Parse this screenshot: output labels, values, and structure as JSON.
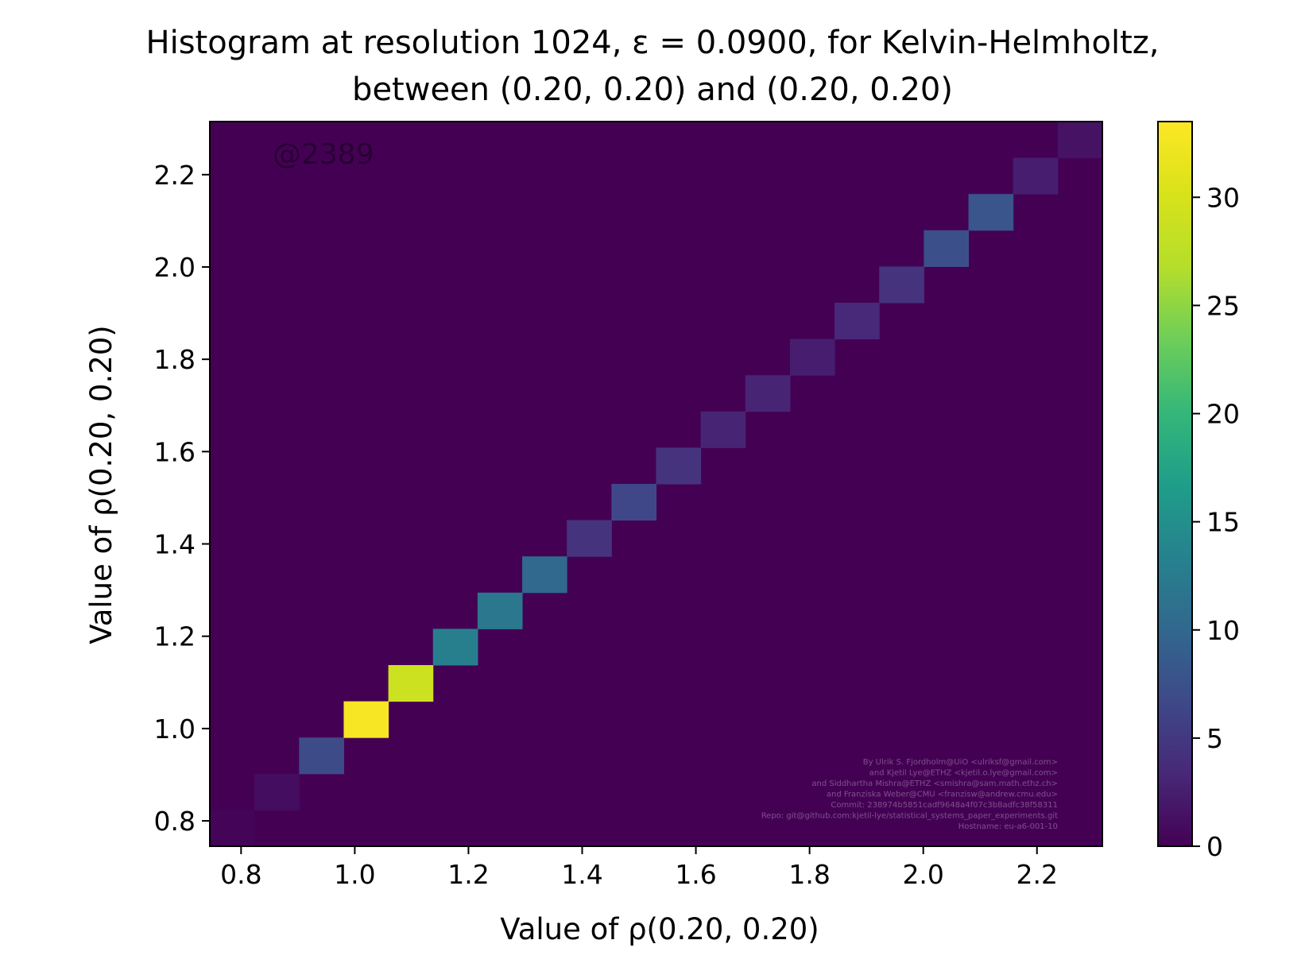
{
  "chart_data": {
    "type": "heatmap",
    "title_lines": [
      "Histogram at resolution 1024, ε = 0.0900, for Kelvin-Helmholtz,",
      "between (0.20, 0.20) and (0.20, 0.20)"
    ],
    "xlabel": "Value of ρ(0.20, 0.20)",
    "ylabel": "Value of ρ(0.20, 0.20)",
    "xlim": [
      0.745,
      2.315
    ],
    "ylim": [
      0.745,
      2.315
    ],
    "x_ticks": [
      0.8,
      1.0,
      1.2,
      1.4,
      1.6,
      1.8,
      2.0,
      2.2
    ],
    "x_tick_labels": [
      "0.8",
      "1.0",
      "1.2",
      "1.4",
      "1.6",
      "1.8",
      "2.0",
      "2.2"
    ],
    "y_ticks": [
      0.8,
      1.0,
      1.2,
      1.4,
      1.6,
      1.8,
      2.0,
      2.2
    ],
    "y_tick_labels": [
      "0.8",
      "1.0",
      "1.2",
      "1.4",
      "1.6",
      "1.8",
      "2.0",
      "2.2"
    ],
    "bin_count": 20,
    "background_value": 0,
    "cells": [
      {
        "x0": 0.745,
        "x1": 0.8235,
        "y0": 0.745,
        "y1": 0.8235,
        "value": 0.3
      },
      {
        "x0": 0.8235,
        "x1": 0.902,
        "y0": 0.8235,
        "y1": 0.902,
        "value": 1
      },
      {
        "x0": 0.902,
        "x1": 0.9805,
        "y0": 0.902,
        "y1": 0.9805,
        "value": 7
      },
      {
        "x0": 0.9805,
        "x1": 1.059,
        "y0": 0.9805,
        "y1": 1.059,
        "value": 33
      },
      {
        "x0": 1.059,
        "x1": 1.1375,
        "y0": 1.059,
        "y1": 1.1375,
        "value": 29
      },
      {
        "x0": 1.1375,
        "x1": 1.216,
        "y0": 1.1375,
        "y1": 1.216,
        "value": 13
      },
      {
        "x0": 1.216,
        "x1": 1.2945,
        "y0": 1.216,
        "y1": 1.2945,
        "value": 12
      },
      {
        "x0": 1.2945,
        "x1": 1.373,
        "y0": 1.2945,
        "y1": 1.373,
        "value": 10
      },
      {
        "x0": 1.373,
        "x1": 1.4515,
        "y0": 1.373,
        "y1": 1.4515,
        "value": 4.5
      },
      {
        "x0": 1.4515,
        "x1": 1.53,
        "y0": 1.4515,
        "y1": 1.53,
        "value": 6.5
      },
      {
        "x0": 1.53,
        "x1": 1.6085,
        "y0": 1.53,
        "y1": 1.6085,
        "value": 4.5
      },
      {
        "x0": 1.6085,
        "x1": 1.687,
        "y0": 1.6085,
        "y1": 1.687,
        "value": 3
      },
      {
        "x0": 1.687,
        "x1": 1.7655,
        "y0": 1.687,
        "y1": 1.7655,
        "value": 3
      },
      {
        "x0": 1.7655,
        "x1": 1.844,
        "y0": 1.7655,
        "y1": 1.844,
        "value": 2.5
      },
      {
        "x0": 1.844,
        "x1": 1.9225,
        "y0": 1.844,
        "y1": 1.9225,
        "value": 3.5
      },
      {
        "x0": 1.9225,
        "x1": 2.001,
        "y0": 1.9225,
        "y1": 2.001,
        "value": 4.5
      },
      {
        "x0": 2.001,
        "x1": 2.0795,
        "y0": 2.001,
        "y1": 2.0795,
        "value": 7.5
      },
      {
        "x0": 2.0795,
        "x1": 2.158,
        "y0": 2.0795,
        "y1": 2.158,
        "value": 8
      },
      {
        "x0": 2.158,
        "x1": 2.2365,
        "y0": 2.158,
        "y1": 2.2365,
        "value": 2.5
      },
      {
        "x0": 2.2365,
        "x1": 2.315,
        "y0": 2.2365,
        "y1": 2.315,
        "value": 1.5
      }
    ],
    "colorbar": {
      "min": 0,
      "max": 33.5,
      "ticks": [
        0,
        5,
        10,
        15,
        20,
        25,
        30
      ],
      "tick_labels": [
        "0",
        "5",
        "10",
        "15",
        "20",
        "25",
        "30"
      ],
      "colormap": "viridis"
    },
    "grid": false,
    "legend": false,
    "annotations": {
      "watermark": "@2389",
      "credits": [
        "By Ulrik S. Fjordholm@UiO <ulriksf@gmail.com>",
        "and Kjetil Lye@ETHZ <kjetil.o.lye@gmail.com>",
        "and Siddhartha Mishra@ETHZ <smishra@sam.math.ethz.ch>",
        "and Franziska Weber@CMU <franzisw@andrew.cmu.edu>",
        "Commit: 238974b5851cadf9648a4f07c3b8adfc38f58311",
        "Repo: git@github.com:kjetil-lye/statistical_systems_paper_experiments.git",
        "Hostname: eu-a6-001-10"
      ]
    },
    "colors": {
      "axes_edge": "#000000",
      "background": "#ffffff"
    }
  }
}
